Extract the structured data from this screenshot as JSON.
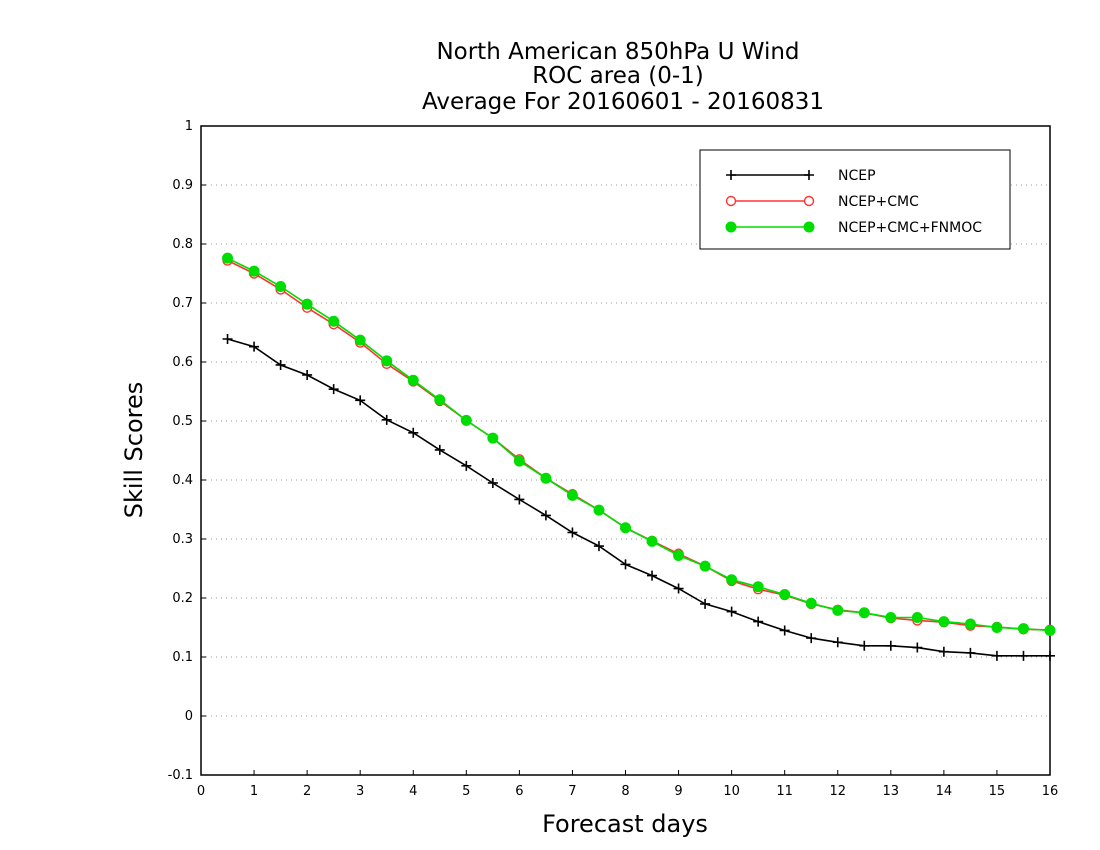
{
  "chart_data": {
    "type": "line",
    "title_lines": [
      "North American 850hPa U Wind",
      "ROC area (0-1)",
      "Average For 20160601 - 20160831"
    ],
    "xlabel": "Forecast days",
    "ylabel": "Skill Scores",
    "xlim": [
      0,
      16
    ],
    "ylim": [
      -0.1,
      1
    ],
    "xticks": [
      "0",
      "1",
      "2",
      "3",
      "4",
      "5",
      "6",
      "7",
      "8",
      "9",
      "10",
      "11",
      "12",
      "13",
      "14",
      "15",
      "16"
    ],
    "yticks": [
      "-0.1",
      "0",
      "0.1",
      "0.2",
      "0.3",
      "0.4",
      "0.5",
      "0.6",
      "0.7",
      "0.8",
      "0.9",
      "1"
    ],
    "grid": "horizontal dotted",
    "legend_position": "top-right",
    "x": [
      0.5,
      1,
      1.5,
      2,
      2.5,
      3,
      3.5,
      4,
      4.5,
      5,
      5.5,
      6,
      6.5,
      7,
      7.5,
      8,
      8.5,
      9,
      9.5,
      10,
      10.5,
      11,
      11.5,
      12,
      12.5,
      13,
      13.5,
      14,
      14.5,
      15,
      15.5,
      16
    ],
    "series": [
      {
        "name": "NCEP",
        "color": "#000000",
        "marker": "plus",
        "values": [
          0.639,
          0.626,
          0.595,
          0.578,
          0.554,
          0.535,
          0.502,
          0.48,
          0.451,
          0.424,
          0.395,
          0.367,
          0.34,
          0.311,
          0.288,
          0.257,
          0.238,
          0.216,
          0.19,
          0.177,
          0.16,
          0.145,
          0.132,
          0.125,
          0.119,
          0.119,
          0.116,
          0.109,
          0.107,
          0.102,
          0.102,
          0.102
        ]
      },
      {
        "name": "NCEP+CMC",
        "color": "#ff3333",
        "marker": "open-circle",
        "values": [
          0.772,
          0.75,
          0.723,
          0.692,
          0.664,
          0.633,
          0.597,
          0.567,
          0.534,
          0.501,
          0.471,
          0.435,
          0.403,
          0.376,
          0.349,
          0.319,
          0.297,
          0.275,
          0.254,
          0.229,
          0.215,
          0.205,
          0.19,
          0.18,
          0.175,
          0.166,
          0.162,
          0.159,
          0.153,
          0.151,
          0.147,
          0.146
        ]
      },
      {
        "name": "NCEP+CMC+FNMOC",
        "color": "#00dd00",
        "marker": "filled-circle",
        "values": [
          0.776,
          0.754,
          0.728,
          0.698,
          0.669,
          0.637,
          0.602,
          0.569,
          0.536,
          0.501,
          0.471,
          0.432,
          0.403,
          0.374,
          0.349,
          0.319,
          0.296,
          0.272,
          0.254,
          0.231,
          0.219,
          0.206,
          0.191,
          0.179,
          0.175,
          0.167,
          0.167,
          0.16,
          0.156,
          0.15,
          0.148,
          0.145
        ]
      }
    ]
  }
}
